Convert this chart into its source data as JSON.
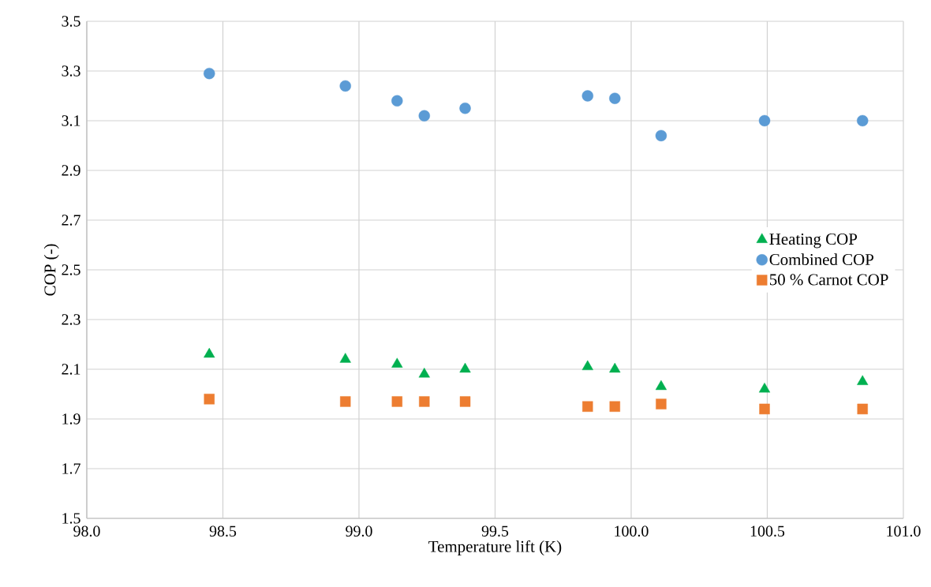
{
  "chart_data": {
    "type": "scatter",
    "xlabel": "Temperature lift (K)",
    "ylabel": "COP (-)",
    "xlim": [
      98.0,
      101.0
    ],
    "xticks": [
      {
        "value": 98.0,
        "label": "98.0"
      },
      {
        "value": 98.5,
        "label": "98.5"
      },
      {
        "value": 99.0,
        "label": "99.0"
      },
      {
        "value": 99.5,
        "label": "99.5"
      },
      {
        "value": 100.0,
        "label": "100.0"
      },
      {
        "value": 100.5,
        "label": "100.5"
      },
      {
        "value": 101.0,
        "label": "101.0"
      }
    ],
    "ylim": [
      1.5,
      3.5
    ],
    "yticks": [
      1.5,
      1.7,
      1.9,
      2.1,
      2.3,
      2.5,
      2.7,
      2.9,
      3.1,
      3.3,
      3.5
    ],
    "x": [
      98.45,
      98.95,
      99.14,
      99.24,
      99.39,
      99.84,
      99.94,
      100.11,
      100.49,
      100.85
    ],
    "series": [
      {
        "name": "Heating COP",
        "color": "#00b050",
        "marker": "triangle",
        "values": [
          2.16,
          2.14,
          2.12,
          2.08,
          2.1,
          2.11,
          2.1,
          2.03,
          2.02,
          2.05
        ]
      },
      {
        "name": "Combined COP",
        "color": "#5b9bd5",
        "marker": "circle",
        "values": [
          3.29,
          3.24,
          3.18,
          3.12,
          3.15,
          3.2,
          3.19,
          3.04,
          3.1,
          3.1
        ]
      },
      {
        "name": "50 % Carnot COP",
        "color": "#ed7d31",
        "marker": "square",
        "values": [
          1.98,
          1.97,
          1.97,
          1.97,
          1.97,
          1.95,
          1.95,
          1.96,
          1.94,
          1.94
        ]
      }
    ],
    "grid": true,
    "legend": "right"
  }
}
